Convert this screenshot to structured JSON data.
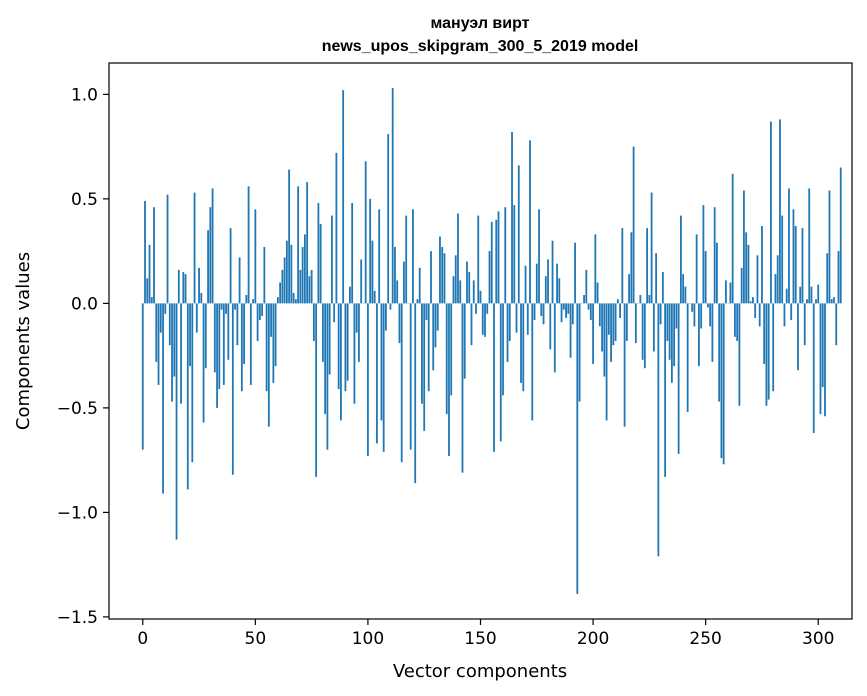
{
  "chart_data": {
    "type": "bar",
    "title_line1": "мануэл вирт",
    "title_line2": "news_upos_skipgram_300_5_2019 model",
    "xlabel": "Vector components",
    "ylabel": "Components values",
    "xlim": [
      -15,
      315
    ],
    "ylim": [
      -1.51,
      1.15
    ],
    "xticks": [
      0,
      50,
      100,
      150,
      200,
      250,
      300
    ],
    "xtick_labels": [
      "0",
      "50",
      "100",
      "150",
      "200",
      "250",
      "300"
    ],
    "yticks": [
      -1.5,
      -1.0,
      -0.5,
      0.0,
      0.5,
      1.0
    ],
    "ytick_labels": [
      "−1.5",
      "−1.0",
      "−0.5",
      "0.0",
      "0.5",
      "1.0"
    ],
    "bar_color": "#1f77b4",
    "grid": false,
    "series": [
      {
        "values": [
          -0.7,
          0.49,
          0.12,
          0.28,
          0.03,
          0.46,
          -0.28,
          -0.39,
          -0.14,
          -0.91,
          -0.05,
          0.52,
          -0.2,
          -0.47,
          -0.35,
          -1.13,
          0.16,
          -0.48,
          0.15,
          0.14,
          -0.89,
          -0.3,
          -0.76,
          0.53,
          -0.14,
          0.17,
          0.05,
          -0.57,
          -0.31,
          0.35,
          0.46,
          0.55,
          -0.33,
          -0.5,
          -0.41,
          -0.03,
          -0.39,
          -0.05,
          -0.27,
          0.36,
          -0.82,
          -0.03,
          -0.2,
          0.22,
          -0.42,
          -0.29,
          0.04,
          0.56,
          -0.39,
          0.02,
          0.45,
          -0.18,
          -0.08,
          -0.06,
          0.27,
          -0.42,
          -0.59,
          -0.16,
          -0.38,
          -0.3,
          0.03,
          0.1,
          0.16,
          0.22,
          0.3,
          0.64,
          0.28,
          0.05,
          0.02,
          0.56,
          0.16,
          0.27,
          0.33,
          0.58,
          0.13,
          0.16,
          -0.18,
          -0.83,
          0.48,
          0.38,
          -0.28,
          -0.53,
          -0.7,
          -0.34,
          0.42,
          -0.09,
          0.72,
          -0.41,
          -0.56,
          1.02,
          -0.42,
          -0.37,
          0.08,
          0.48,
          -0.48,
          -0.14,
          -0.28,
          0.21,
          0.0,
          0.68,
          -0.73,
          0.5,
          0.3,
          0.06,
          -0.67,
          0.45,
          -0.56,
          -0.71,
          -0.13,
          0.81,
          -0.03,
          1.03,
          0.27,
          0.11,
          -0.19,
          -0.76,
          0.2,
          0.42,
          0.0,
          -0.7,
          0.45,
          -0.86,
          0.02,
          0.17,
          -0.48,
          -0.61,
          -0.08,
          -0.42,
          0.25,
          -0.32,
          -0.21,
          -0.13,
          0.32,
          0.27,
          0.24,
          -0.53,
          -0.73,
          -0.44,
          0.13,
          0.23,
          0.43,
          0.11,
          -0.81,
          -0.36,
          0.2,
          0.15,
          -0.2,
          0.11,
          -0.05,
          0.42,
          0.06,
          -0.15,
          -0.16,
          -0.05,
          0.25,
          0.39,
          -0.71,
          0.4,
          0.44,
          -0.66,
          -0.44,
          0.46,
          -0.28,
          -0.18,
          0.82,
          0.47,
          -0.14,
          0.66,
          -0.38,
          -0.42,
          0.18,
          -0.15,
          0.78,
          -0.56,
          -0.08,
          0.19,
          0.45,
          -0.06,
          -0.1,
          0.13,
          0.21,
          -0.22,
          0.3,
          -0.33,
          0.19,
          0.12,
          -0.09,
          -0.03,
          -0.07,
          -0.05,
          -0.26,
          -0.1,
          0.29,
          -1.39,
          -0.47,
          0.0,
          0.04,
          0.16,
          -0.03,
          -0.08,
          -0.29,
          0.33,
          0.1,
          -0.11,
          -0.23,
          -0.35,
          -0.56,
          -0.15,
          -0.28,
          -0.2,
          -0.18,
          0.02,
          -0.07,
          0.36,
          -0.59,
          -0.18,
          0.14,
          0.34,
          0.75,
          -0.19,
          0.0,
          0.04,
          -0.27,
          -0.31,
          0.36,
          0.04,
          0.53,
          -0.23,
          0.24,
          -1.21,
          -0.1,
          0.15,
          -0.83,
          -0.18,
          -0.27,
          -0.38,
          -0.3,
          -0.12,
          -0.72,
          0.42,
          0.14,
          0.08,
          -0.52,
          0.0,
          -0.04,
          -0.11,
          0.33,
          -0.3,
          -0.12,
          0.47,
          0.25,
          -0.02,
          -0.11,
          -0.28,
          0.46,
          0.29,
          -0.47,
          -0.74,
          -0.77,
          0.11,
          0.0,
          0.1,
          0.62,
          -0.16,
          -0.18,
          -0.49,
          0.17,
          0.54,
          0.34,
          0.28,
          0.01,
          0.03,
          -0.07,
          0.23,
          -0.11,
          0.37,
          -0.29,
          -0.49,
          -0.46,
          0.87,
          -0.42,
          0.14,
          0.23,
          0.88,
          0.42,
          -0.11,
          0.07,
          0.55,
          -0.08,
          0.45,
          0.37,
          -0.32,
          0.08,
          0.36,
          -0.2,
          0.02,
          0.55,
          0.08,
          -0.62,
          0.02,
          0.09,
          -0.53,
          -0.4,
          -0.54,
          0.24,
          0.54,
          0.02,
          0.03,
          -0.2,
          0.25,
          0.65
        ]
      }
    ]
  }
}
